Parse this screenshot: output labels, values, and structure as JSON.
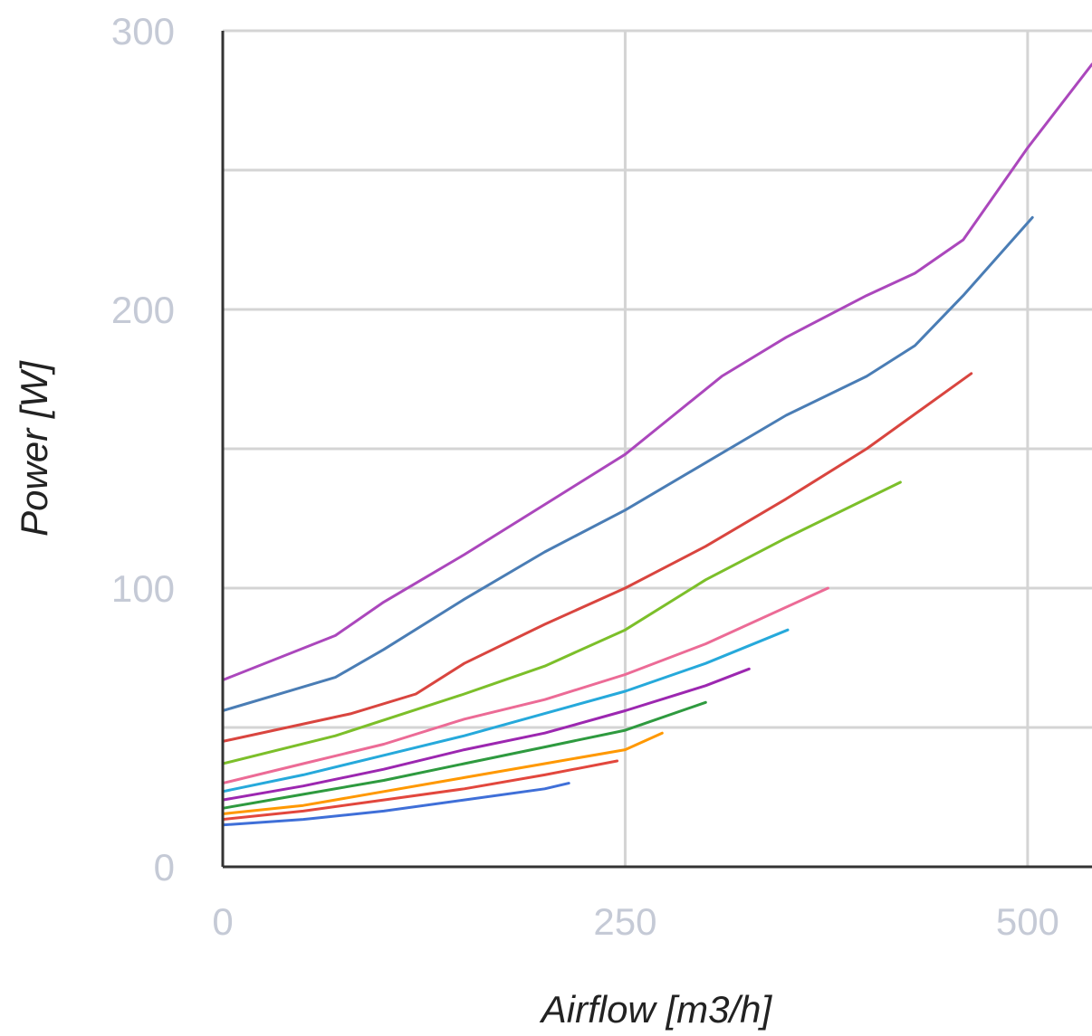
{
  "chart_data": {
    "type": "line",
    "title": "",
    "xlabel": "Airflow [m3/h]",
    "ylabel": "Power [W]",
    "xlim": [
      0,
      540
    ],
    "ylim": [
      0,
      300
    ],
    "x_ticks": [
      0,
      250,
      500
    ],
    "x_tick_labels": [
      "0",
      "250",
      "500"
    ],
    "y_ticks": [
      0,
      100,
      200,
      300
    ],
    "y_tick_labels": [
      "0",
      "100",
      "200",
      "300"
    ],
    "y_gridlines": [
      50,
      100,
      150,
      200,
      250,
      300
    ],
    "grid": true,
    "legend": "none",
    "series": [
      {
        "color": "#ab47bc",
        "x": [
          0,
          70,
          100,
          150,
          200,
          250,
          280,
          310,
          350,
          400,
          430,
          460,
          500,
          540
        ],
        "y": [
          67,
          83,
          95,
          112,
          130,
          148,
          162,
          176,
          190,
          205,
          213,
          225,
          258,
          288
        ]
      },
      {
        "color": "#4a7db5",
        "x": [
          0,
          70,
          100,
          150,
          200,
          250,
          300,
          350,
          400,
          430,
          460,
          503
        ],
        "y": [
          56,
          68,
          78,
          96,
          113,
          128,
          145,
          162,
          176,
          187,
          205,
          233
        ]
      },
      {
        "color": "#d9453f",
        "x": [
          0,
          80,
          120,
          150,
          200,
          250,
          300,
          350,
          400,
          465
        ],
        "y": [
          45,
          55,
          62,
          73,
          87,
          100,
          115,
          132,
          150,
          177
        ]
      },
      {
        "color": "#7cbf2a",
        "x": [
          0,
          70,
          150,
          200,
          250,
          300,
          350,
          421
        ],
        "y": [
          37,
          47,
          62,
          72,
          85,
          103,
          118,
          138
        ]
      },
      {
        "color": "#ec6b96",
        "x": [
          0,
          50,
          100,
          150,
          200,
          250,
          300,
          376
        ],
        "y": [
          30,
          37,
          44,
          53,
          60,
          69,
          80,
          100
        ]
      },
      {
        "color": "#26a9db",
        "x": [
          0,
          50,
          100,
          150,
          200,
          250,
          300,
          351
        ],
        "y": [
          27,
          33,
          40,
          47,
          55,
          63,
          73,
          85
        ]
      },
      {
        "color": "#9c27b0",
        "x": [
          0,
          50,
          100,
          150,
          200,
          250,
          300,
          327
        ],
        "y": [
          24,
          29,
          35,
          42,
          48,
          56,
          65,
          71
        ]
      },
      {
        "color": "#2e9a3f",
        "x": [
          0,
          50,
          100,
          150,
          200,
          250,
          300
        ],
        "y": [
          21,
          26,
          31,
          37,
          43,
          49,
          59
        ]
      },
      {
        "color": "#ff9800",
        "x": [
          0,
          50,
          100,
          150,
          200,
          250,
          273
        ],
        "y": [
          19,
          22,
          27,
          32,
          37,
          42,
          48
        ]
      },
      {
        "color": "#e2473d",
        "x": [
          0,
          50,
          100,
          150,
          200,
          245
        ],
        "y": [
          17,
          20,
          24,
          28,
          33,
          38
        ]
      },
      {
        "color": "#3f6fd8",
        "x": [
          0,
          50,
          100,
          150,
          200,
          215
        ],
        "y": [
          15,
          17,
          20,
          24,
          28,
          30
        ]
      }
    ]
  }
}
